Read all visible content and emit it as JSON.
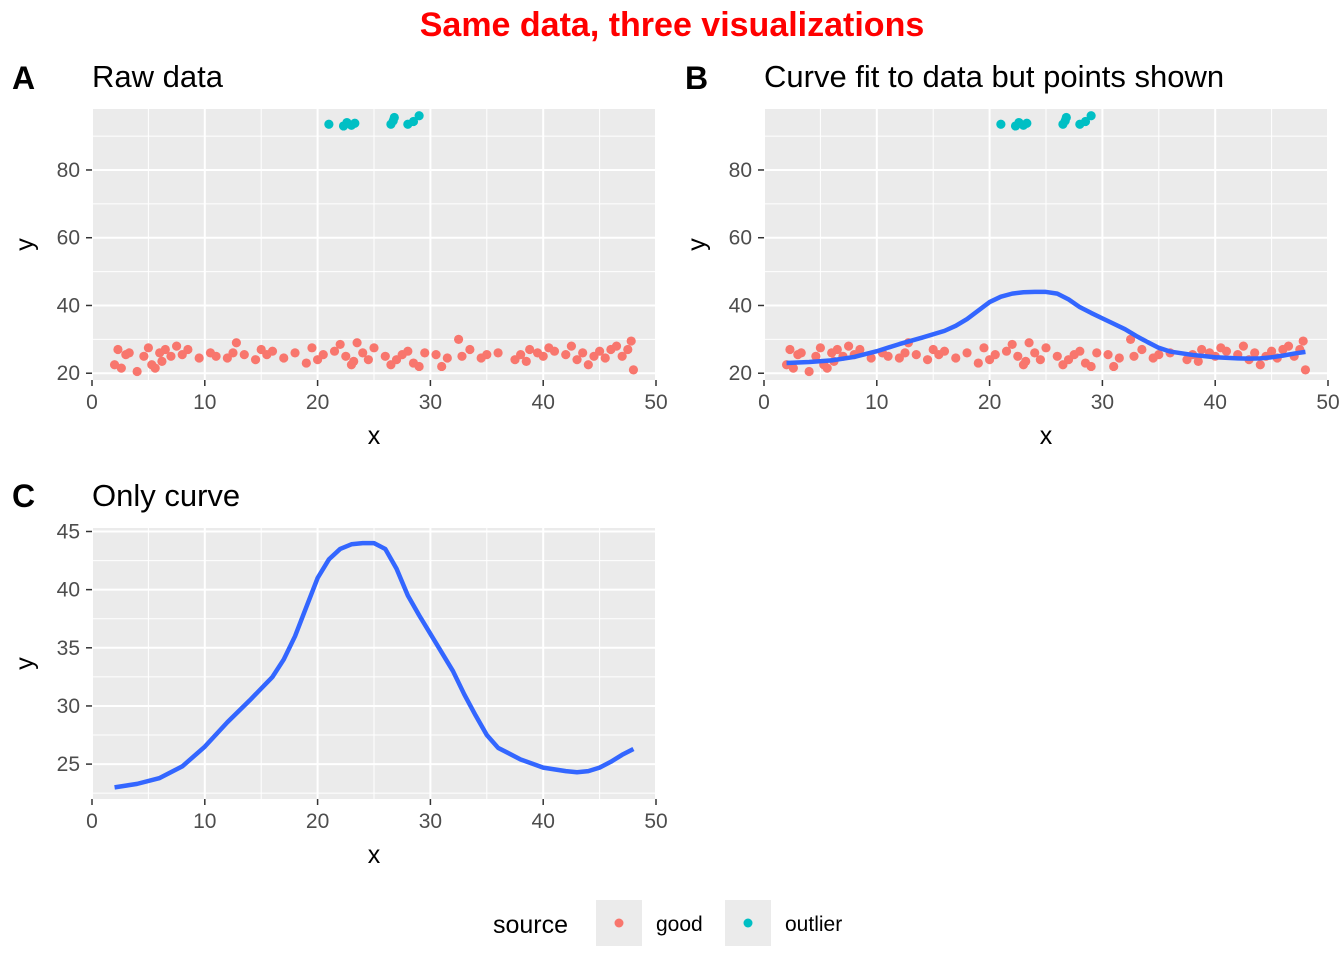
{
  "figure": {
    "title": "Same data, three visualizations",
    "title_color": "#ff0000"
  },
  "colors": {
    "good": "#f8766d",
    "outlier": "#00bfc4",
    "curve": "#3366ff",
    "panel_background": "#ebebeb",
    "grid": "#ffffff"
  },
  "legend": {
    "title": "source",
    "position": "bottom",
    "items": [
      {
        "label": "good",
        "color": "#f8766d"
      },
      {
        "label": "outlier",
        "color": "#00bfc4"
      }
    ]
  },
  "chart_data": [
    {
      "tag": "A",
      "title": "Raw data",
      "type": "scatter",
      "xlabel": "x",
      "ylabel": "y",
      "xlim": [
        0,
        50
      ],
      "ylim": [
        18,
        98
      ],
      "xticks": [
        0,
        10,
        20,
        30,
        40,
        50
      ],
      "yticks": [
        20,
        40,
        60,
        80
      ],
      "grid": true,
      "show_points": true,
      "show_curve": false,
      "series": [
        {
          "name": "good",
          "color": "#f8766d",
          "points": [
            [
              2,
              22.5
            ],
            [
              2.3,
              27
            ],
            [
              2.6,
              21.5
            ],
            [
              3,
              25.5
            ],
            [
              3.3,
              26
            ],
            [
              4,
              20.5
            ],
            [
              4.6,
              25
            ],
            [
              5,
              27.5
            ],
            [
              5.3,
              22.5
            ],
            [
              5.6,
              21.5
            ],
            [
              6,
              26
            ],
            [
              6.2,
              23.5
            ],
            [
              6.5,
              27
            ],
            [
              7,
              25
            ],
            [
              7.5,
              28
            ],
            [
              8,
              25.5
            ],
            [
              8.5,
              27
            ],
            [
              9.5,
              24.5
            ],
            [
              10.5,
              26
            ],
            [
              11,
              25
            ],
            [
              12,
              24.5
            ],
            [
              12.5,
              26
            ],
            [
              12.8,
              29
            ],
            [
              13.5,
              25.5
            ],
            [
              14.5,
              24
            ],
            [
              15,
              27
            ],
            [
              15.5,
              25.5
            ],
            [
              16,
              26.5
            ],
            [
              17,
              24.5
            ],
            [
              18,
              26
            ],
            [
              19,
              23
            ],
            [
              19.5,
              27.5
            ],
            [
              20,
              24
            ],
            [
              20.5,
              25.5
            ],
            [
              21.5,
              26.5
            ],
            [
              22,
              28.5
            ],
            [
              22.5,
              25
            ],
            [
              23,
              22.5
            ],
            [
              23.2,
              23.5
            ],
            [
              23.5,
              29
            ],
            [
              24,
              26
            ],
            [
              24.5,
              24
            ],
            [
              25,
              27.5
            ],
            [
              26,
              25
            ],
            [
              26.5,
              22.5
            ],
            [
              27,
              24
            ],
            [
              27.5,
              25.5
            ],
            [
              28,
              26.5
            ],
            [
              28.5,
              23
            ],
            [
              29,
              22
            ],
            [
              29.5,
              26
            ],
            [
              30.5,
              25.5
            ],
            [
              31,
              22
            ],
            [
              31.5,
              24.5
            ],
            [
              32.5,
              30
            ],
            [
              32.8,
              25
            ],
            [
              33.5,
              27
            ],
            [
              34.5,
              24.5
            ],
            [
              35,
              25.5
            ],
            [
              36,
              26
            ],
            [
              37.5,
              24
            ],
            [
              38,
              25.5
            ],
            [
              38.5,
              23.5
            ],
            [
              38.8,
              27
            ],
            [
              39.5,
              26
            ],
            [
              40,
              25
            ],
            [
              40.5,
              27.5
            ],
            [
              41,
              26.5
            ],
            [
              42,
              25.5
            ],
            [
              42.5,
              28
            ],
            [
              43,
              24
            ],
            [
              43.5,
              26
            ],
            [
              44,
              22.5
            ],
            [
              44.5,
              25
            ],
            [
              45,
              26.5
            ],
            [
              45.5,
              24.5
            ],
            [
              46,
              27
            ],
            [
              46.5,
              28
            ],
            [
              47,
              25
            ],
            [
              47.5,
              27
            ],
            [
              47.8,
              29.5
            ],
            [
              48,
              21
            ]
          ]
        },
        {
          "name": "outlier",
          "color": "#00bfc4",
          "points": [
            [
              21,
              93.5
            ],
            [
              22.3,
              93
            ],
            [
              22.6,
              94
            ],
            [
              23,
              93.2
            ],
            [
              23.3,
              93.8
            ],
            [
              26.5,
              93.5
            ],
            [
              26.7,
              94.5
            ],
            [
              26.8,
              95.5
            ],
            [
              28,
              93.5
            ],
            [
              28.5,
              94.3
            ],
            [
              29,
              96
            ]
          ]
        }
      ]
    },
    {
      "tag": "B",
      "title": "Curve fit to data but points shown",
      "type": "scatter",
      "xlabel": "x",
      "ylabel": "y",
      "xlim": [
        0,
        50
      ],
      "ylim": [
        18,
        98
      ],
      "xticks": [
        0,
        10,
        20,
        30,
        40,
        50
      ],
      "yticks": [
        20,
        40,
        60,
        80
      ],
      "grid": true,
      "show_points": true,
      "show_curve": true,
      "curve": {
        "color": "#3366ff",
        "points": [
          [
            2,
            23
          ],
          [
            4,
            23.3
          ],
          [
            6,
            23.8
          ],
          [
            8,
            24.8
          ],
          [
            10,
            26.5
          ],
          [
            12,
            28.6
          ],
          [
            14,
            30.5
          ],
          [
            16,
            32.5
          ],
          [
            17,
            34
          ],
          [
            18,
            36
          ],
          [
            19,
            38.5
          ],
          [
            20,
            41
          ],
          [
            21,
            42.6
          ],
          [
            22,
            43.5
          ],
          [
            23,
            43.9
          ],
          [
            24,
            44
          ],
          [
            25,
            44
          ],
          [
            26,
            43.5
          ],
          [
            27,
            41.8
          ],
          [
            28,
            39.5
          ],
          [
            29,
            37.8
          ],
          [
            30,
            36.2
          ],
          [
            31,
            34.6
          ],
          [
            32,
            33
          ],
          [
            33,
            31
          ],
          [
            34,
            29.2
          ],
          [
            35,
            27.5
          ],
          [
            36,
            26.4
          ],
          [
            38,
            25.4
          ],
          [
            40,
            24.7
          ],
          [
            42,
            24.4
          ],
          [
            43,
            24.3
          ],
          [
            44,
            24.4
          ],
          [
            45,
            24.7
          ],
          [
            46,
            25.2
          ],
          [
            47,
            25.8
          ],
          [
            48,
            26.3
          ]
        ]
      },
      "series": [
        {
          "name": "good",
          "color": "#f8766d",
          "points": [
            [
              2,
              22.5
            ],
            [
              2.3,
              27
            ],
            [
              2.6,
              21.5
            ],
            [
              3,
              25.5
            ],
            [
              3.3,
              26
            ],
            [
              4,
              20.5
            ],
            [
              4.6,
              25
            ],
            [
              5,
              27.5
            ],
            [
              5.3,
              22.5
            ],
            [
              5.6,
              21.5
            ],
            [
              6,
              26
            ],
            [
              6.2,
              23.5
            ],
            [
              6.5,
              27
            ],
            [
              7,
              25
            ],
            [
              7.5,
              28
            ],
            [
              8,
              25.5
            ],
            [
              8.5,
              27
            ],
            [
              9.5,
              24.5
            ],
            [
              10.5,
              26
            ],
            [
              11,
              25
            ],
            [
              12,
              24.5
            ],
            [
              12.5,
              26
            ],
            [
              12.8,
              29
            ],
            [
              13.5,
              25.5
            ],
            [
              14.5,
              24
            ],
            [
              15,
              27
            ],
            [
              15.5,
              25.5
            ],
            [
              16,
              26.5
            ],
            [
              17,
              24.5
            ],
            [
              18,
              26
            ],
            [
              19,
              23
            ],
            [
              19.5,
              27.5
            ],
            [
              20,
              24
            ],
            [
              20.5,
              25.5
            ],
            [
              21.5,
              26.5
            ],
            [
              22,
              28.5
            ],
            [
              22.5,
              25
            ],
            [
              23,
              22.5
            ],
            [
              23.2,
              23.5
            ],
            [
              23.5,
              29
            ],
            [
              24,
              26
            ],
            [
              24.5,
              24
            ],
            [
              25,
              27.5
            ],
            [
              26,
              25
            ],
            [
              26.5,
              22.5
            ],
            [
              27,
              24
            ],
            [
              27.5,
              25.5
            ],
            [
              28,
              26.5
            ],
            [
              28.5,
              23
            ],
            [
              29,
              22
            ],
            [
              29.5,
              26
            ],
            [
              30.5,
              25.5
            ],
            [
              31,
              22
            ],
            [
              31.5,
              24.5
            ],
            [
              32.5,
              30
            ],
            [
              32.8,
              25
            ],
            [
              33.5,
              27
            ],
            [
              34.5,
              24.5
            ],
            [
              35,
              25.5
            ],
            [
              36,
              26
            ],
            [
              37.5,
              24
            ],
            [
              38,
              25.5
            ],
            [
              38.5,
              23.5
            ],
            [
              38.8,
              27
            ],
            [
              39.5,
              26
            ],
            [
              40,
              25
            ],
            [
              40.5,
              27.5
            ],
            [
              41,
              26.5
            ],
            [
              42,
              25.5
            ],
            [
              42.5,
              28
            ],
            [
              43,
              24
            ],
            [
              43.5,
              26
            ],
            [
              44,
              22.5
            ],
            [
              44.5,
              25
            ],
            [
              45,
              26.5
            ],
            [
              45.5,
              24.5
            ],
            [
              46,
              27
            ],
            [
              46.5,
              28
            ],
            [
              47,
              25
            ],
            [
              47.5,
              27
            ],
            [
              47.8,
              29.5
            ],
            [
              48,
              21
            ]
          ]
        },
        {
          "name": "outlier",
          "color": "#00bfc4",
          "points": [
            [
              21,
              93.5
            ],
            [
              22.3,
              93
            ],
            [
              22.6,
              94
            ],
            [
              23,
              93.2
            ],
            [
              23.3,
              93.8
            ],
            [
              26.5,
              93.5
            ],
            [
              26.7,
              94.5
            ],
            [
              26.8,
              95.5
            ],
            [
              28,
              93.5
            ],
            [
              28.5,
              94.3
            ],
            [
              29,
              96
            ]
          ]
        }
      ]
    },
    {
      "tag": "C",
      "title": "Only curve",
      "type": "line",
      "xlabel": "x",
      "ylabel": "y",
      "xlim": [
        0,
        50
      ],
      "ylim": [
        22,
        45.3
      ],
      "xticks": [
        0,
        10,
        20,
        30,
        40,
        50
      ],
      "yticks": [
        25,
        30,
        35,
        40,
        45
      ],
      "grid": true,
      "show_points": false,
      "show_curve": true,
      "curve": {
        "color": "#3366ff",
        "points": [
          [
            2,
            23
          ],
          [
            4,
            23.3
          ],
          [
            6,
            23.8
          ],
          [
            8,
            24.8
          ],
          [
            10,
            26.5
          ],
          [
            12,
            28.6
          ],
          [
            14,
            30.5
          ],
          [
            16,
            32.5
          ],
          [
            17,
            34
          ],
          [
            18,
            36
          ],
          [
            19,
            38.5
          ],
          [
            20,
            41
          ],
          [
            21,
            42.6
          ],
          [
            22,
            43.5
          ],
          [
            23,
            43.9
          ],
          [
            24,
            44
          ],
          [
            25,
            44
          ],
          [
            26,
            43.5
          ],
          [
            27,
            41.8
          ],
          [
            28,
            39.5
          ],
          [
            29,
            37.8
          ],
          [
            30,
            36.2
          ],
          [
            31,
            34.6
          ],
          [
            32,
            33
          ],
          [
            33,
            31
          ],
          [
            34,
            29.2
          ],
          [
            35,
            27.5
          ],
          [
            36,
            26.4
          ],
          [
            38,
            25.4
          ],
          [
            40,
            24.7
          ],
          [
            42,
            24.4
          ],
          [
            43,
            24.3
          ],
          [
            44,
            24.4
          ],
          [
            45,
            24.7
          ],
          [
            46,
            25.2
          ],
          [
            47,
            25.8
          ],
          [
            48,
            26.3
          ]
        ]
      },
      "series": []
    }
  ]
}
